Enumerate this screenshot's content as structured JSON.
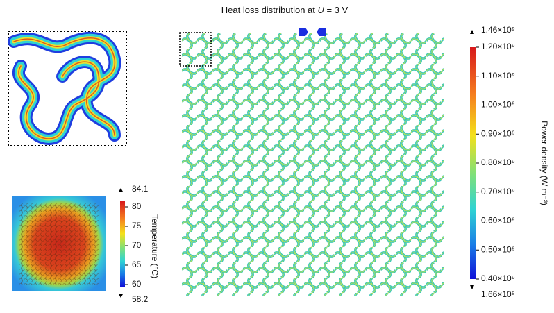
{
  "title": {
    "prefix": "Heat loss distribution at ",
    "variable": "U",
    "suffix": " = 3 V"
  },
  "power_colorbar": {
    "axis_label": "Power density (W m⁻³)",
    "max": {
      "value": 1460000000,
      "label": "1.46×10⁹"
    },
    "min": {
      "value": 1660000,
      "label": "1.66×10⁶"
    },
    "ticks": [
      {
        "value": 1200000000,
        "label": "1.20×10⁹"
      },
      {
        "value": 1100000000,
        "label": "1.10×10⁹"
      },
      {
        "value": 1000000000,
        "label": "1.00×10⁹"
      },
      {
        "value": 900000000,
        "label": "0.90×10⁹"
      },
      {
        "value": 800000000,
        "label": "0.80×10⁹"
      },
      {
        "value": 700000000,
        "label": "0.70×10⁹"
      },
      {
        "value": 600000000,
        "label": "0.60×10⁹"
      },
      {
        "value": 500000000,
        "label": "0.50×10⁹"
      },
      {
        "value": 400000000,
        "label": "0.40×10⁹"
      }
    ]
  },
  "temperature_colorbar": {
    "axis_label": "Temperature (°C)",
    "max": 84.1,
    "min": 58.2,
    "ticks": [
      80,
      75,
      70,
      65,
      60
    ]
  }
}
